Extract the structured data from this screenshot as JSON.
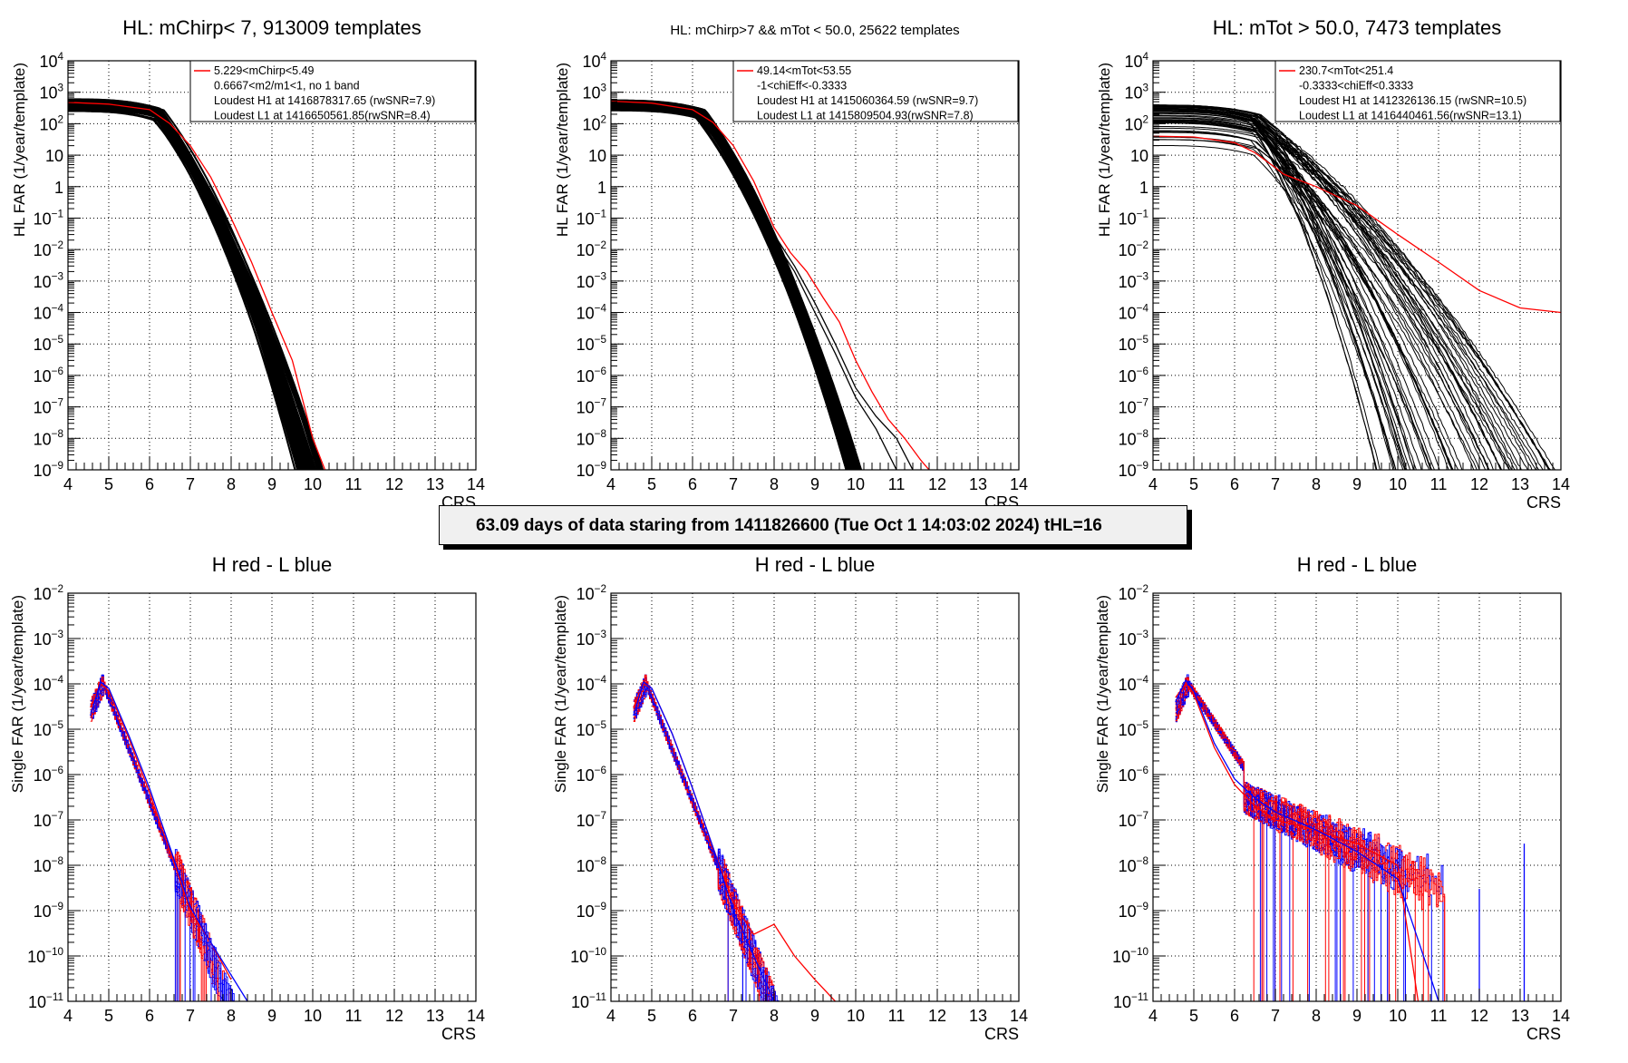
{
  "banner": {
    "text": "63.09 days of data staring from 1411826600 (Tue Oct  1 14:03:02 2024) tHL=16"
  },
  "colors": {
    "black": "#000000",
    "red": "#ff0000",
    "blue": "#0000ff",
    "grid": "#000000",
    "banner_bg": "#f0f0f0"
  },
  "chart_data": [
    {
      "id": "top-left",
      "type": "line",
      "title": "HL: mChirp< 7, 913009 templates",
      "xlabel": "CRS",
      "ylabel": "HL FAR (1/year/template)",
      "xlim": [
        4,
        14
      ],
      "ylim": [
        1e-09,
        10000.0
      ],
      "yscale": "log",
      "grid": true,
      "xticks": [
        "4",
        "5",
        "6",
        "7",
        "8",
        "9",
        "10",
        "11",
        "12",
        "13",
        "14"
      ],
      "yticks": [
        "10^4",
        "10^3",
        "10^2",
        "10",
        "1",
        "10^-1",
        "10^-2",
        "10^-3",
        "10^-4",
        "10^-5",
        "10^-6",
        "10^-7",
        "10^-8",
        "10^-9"
      ],
      "legend": {
        "position": "top-right",
        "entries": [
          "5.229<mChirp<5.49",
          "0.6667<m2/m1<1, no 1 band",
          "Loudest H1 at 1416878317.65 (rwSNR=7.9)",
          "Loudest L1 at 1416650561.85(rwSNR=8.4)"
        ]
      },
      "bundle": {
        "color": "black",
        "count": 60,
        "plateau_range": [
          250,
          600
        ],
        "knee": 6.2,
        "end_range": [
          9.6,
          10.3
        ]
      },
      "series": [
        {
          "name": "5.229<mChirp<5.49",
          "color": "red",
          "x": [
            4,
            5,
            6,
            6.5,
            7,
            7.5,
            8,
            8.5,
            9,
            9.5,
            10,
            10.3
          ],
          "y": [
            480,
            420,
            280,
            100,
            20,
            2,
            0.1,
            0.004,
            0.0001,
            3e-06,
            1e-08,
            1e-09
          ]
        }
      ]
    },
    {
      "id": "top-middle",
      "type": "line",
      "title": "HL: mChirp>7 && mTot < 50.0, 25622 templates",
      "xlabel": "CRS",
      "ylabel": "HL FAR (1/year/template)",
      "xlim": [
        4,
        14
      ],
      "ylim": [
        1e-09,
        10000.0
      ],
      "yscale": "log",
      "grid": true,
      "xticks": [
        "4",
        "5",
        "6",
        "7",
        "8",
        "9",
        "10",
        "11",
        "12",
        "13",
        "14"
      ],
      "yticks": [
        "10^4",
        "10^3",
        "10^2",
        "10",
        "1",
        "10^-1",
        "10^-2",
        "10^-3",
        "10^-4",
        "10^-5",
        "10^-6",
        "10^-7",
        "10^-8",
        "10^-9"
      ],
      "legend": {
        "position": "top-right",
        "entries": [
          "49.14<mTot<53.55",
          "-1<chiEff<-0.3333",
          "Loudest H1 at 1415060364.59 (rwSNR=9.7)",
          "Loudest L1 at 1415809504.93(rwSNR=7.8)"
        ]
      },
      "bundle": {
        "color": "black",
        "count": 40,
        "plateau_range": [
          250,
          550
        ],
        "knee": 6.2,
        "end_range": [
          9.8,
          10.2
        ]
      },
      "series": [
        {
          "name": "49.14<mTot<53.55",
          "color": "red",
          "x": [
            4,
            5,
            6,
            6.5,
            7,
            7.5,
            8,
            8.4,
            8.8,
            9.2,
            9.6,
            10,
            10.4,
            10.8,
            11.2,
            11.6,
            11.8
          ],
          "y": [
            520,
            450,
            280,
            110,
            20,
            1.5,
            0.05,
            0.008,
            0.002,
            0.0003,
            5e-05,
            3e-06,
            3e-07,
            4e-08,
            1e-08,
            2e-09,
            1e-09
          ]
        },
        {
          "name": "outlier-1",
          "color": "black",
          "x": [
            8,
            8.5,
            9,
            9.5,
            10,
            10.5,
            11
          ],
          "y": [
            0.02,
            0.002,
            0.0001,
            5e-06,
            2e-07,
            2e-08,
            1e-09
          ]
        },
        {
          "name": "outlier-2",
          "color": "black",
          "x": [
            8,
            8.5,
            9,
            9.5,
            10,
            10.5,
            11,
            11.4
          ],
          "y": [
            0.03,
            0.003,
            0.0002,
            1e-05,
            4e-07,
            5e-08,
            1e-08,
            1e-09
          ]
        }
      ]
    },
    {
      "id": "top-right",
      "type": "line",
      "title": "HL: mTot > 50.0, 7473 templates",
      "xlabel": "CRS",
      "ylabel": "HL FAR (1/year/template)",
      "xlim": [
        4,
        14
      ],
      "ylim": [
        1e-09,
        10000.0
      ],
      "yscale": "log",
      "grid": true,
      "xticks": [
        "4",
        "5",
        "6",
        "7",
        "8",
        "9",
        "10",
        "11",
        "12",
        "13",
        "14"
      ],
      "yticks": [
        "10^4",
        "10^3",
        "10^2",
        "10",
        "1",
        "10^-1",
        "10^-2",
        "10^-3",
        "10^-4",
        "10^-5",
        "10^-6",
        "10^-7",
        "10^-8",
        "10^-9"
      ],
      "legend": {
        "position": "top-right",
        "entries": [
          "230.7<mTot<251.4",
          "-0.3333<chiEff<0.3333",
          "Loudest H1 at 1412326136.15 (rwSNR=10.5)",
          "Loudest L1 at 1416440461.56(rwSNR=13.1)"
        ]
      },
      "bundle": {
        "color": "black",
        "count": 55,
        "plateau_range": [
          18,
          400
        ],
        "knee": 6.5,
        "end_range": [
          9.5,
          14
        ]
      },
      "series": [
        {
          "name": "230.7<mTot<251.4",
          "color": "red",
          "x": [
            4,
            5,
            6,
            6.5,
            7,
            7.2,
            8,
            9,
            10,
            11,
            12,
            13,
            14
          ],
          "y": [
            40,
            38,
            25,
            12,
            4,
            2.5,
            1.0,
            0.25,
            0.03,
            0.004,
            0.0005,
            0.00014,
            0.0001
          ]
        }
      ]
    },
    {
      "id": "bottom-left",
      "type": "line",
      "title": "H red - L blue",
      "xlabel": "CRS",
      "ylabel": "Single FAR (1/year/template)",
      "xlim": [
        4,
        14
      ],
      "ylim": [
        1e-11,
        0.01
      ],
      "yscale": "log",
      "grid": true,
      "xticks": [
        "4",
        "5",
        "6",
        "7",
        "8",
        "9",
        "10",
        "11",
        "12",
        "13",
        "14"
      ],
      "yticks": [
        "10^-2",
        "10^-3",
        "10^-4",
        "10^-5",
        "10^-6",
        "10^-7",
        "10^-8",
        "10^-9",
        "10^-10",
        "10^-11"
      ],
      "bundle": {
        "count": 30,
        "tail_end": [
          6.7,
          8.4
        ],
        "spread": 0.2
      },
      "series": [
        {
          "name": "H",
          "color": "red",
          "x": [
            4.55,
            4.8,
            5.0,
            5.5,
            6.0,
            6.5,
            7.0,
            7.5,
            8.0
          ],
          "y": [
            3e-05,
            0.0001,
            7e-05,
            6e-06,
            4e-07,
            2e-08,
            1e-09,
            2e-10,
            3e-11
          ]
        },
        {
          "name": "L",
          "color": "blue",
          "x": [
            4.55,
            4.8,
            5.0,
            5.5,
            6.0,
            6.5,
            7.0,
            7.5,
            8.4
          ],
          "y": [
            2e-05,
            0.00011,
            8e-05,
            7e-06,
            5e-07,
            2.5e-08,
            1.2e-09,
            2e-10,
            1e-11
          ]
        }
      ]
    },
    {
      "id": "bottom-middle",
      "type": "line",
      "title": "H red - L blue",
      "xlabel": "CRS",
      "ylabel": "Single FAR (1/year/template)",
      "xlim": [
        4,
        14
      ],
      "ylim": [
        1e-11,
        0.01
      ],
      "yscale": "log",
      "grid": true,
      "xticks": [
        "4",
        "5",
        "6",
        "7",
        "8",
        "9",
        "10",
        "11",
        "12",
        "13",
        "14"
      ],
      "yticks": [
        "10^-2",
        "10^-3",
        "10^-4",
        "10^-5",
        "10^-6",
        "10^-7",
        "10^-8",
        "10^-9",
        "10^-10",
        "10^-11"
      ],
      "bundle": {
        "count": 30,
        "tail_end": [
          6.9,
          9.5
        ],
        "spread": 0.2
      },
      "series": [
        {
          "name": "H",
          "color": "red",
          "x": [
            4.55,
            4.8,
            5.0,
            5.5,
            6.0,
            6.5,
            7.0,
            7.5,
            8.0,
            8.5,
            9.0,
            9.5
          ],
          "y": [
            3e-05,
            0.0001,
            8e-05,
            8e-06,
            5e-07,
            2.5e-08,
            1.5e-09,
            3e-10,
            5e-10,
            1e-10,
            3e-11,
            1e-11
          ]
        },
        {
          "name": "L",
          "color": "blue",
          "x": [
            4.55,
            4.8,
            5.0,
            5.5,
            6.0,
            6.5,
            7.0,
            7.5,
            8.0
          ],
          "y": [
            2e-05,
            0.00011,
            8e-05,
            8e-06,
            5e-07,
            2.5e-08,
            1e-09,
            1e-10,
            1e-11
          ]
        }
      ]
    },
    {
      "id": "bottom-right",
      "type": "line",
      "title": "H red - L blue",
      "xlabel": "CRS",
      "ylabel": "Single FAR (1/year/template)",
      "xlim": [
        4,
        14
      ],
      "ylim": [
        1e-11,
        0.01
      ],
      "yscale": "log",
      "grid": true,
      "xticks": [
        "4",
        "5",
        "6",
        "7",
        "8",
        "9",
        "10",
        "11",
        "12",
        "13",
        "14"
      ],
      "yticks": [
        "10^-2",
        "10^-3",
        "10^-4",
        "10^-5",
        "10^-6",
        "10^-7",
        "10^-8",
        "10^-9",
        "10^-10",
        "10^-11"
      ],
      "bundle": {
        "count": 45,
        "tail_end": [
          6.5,
          11.3
        ],
        "spread": 0.6
      },
      "series": [
        {
          "name": "H",
          "color": "red",
          "x": [
            4.55,
            4.8,
            5.0,
            5.5,
            6.0,
            6.5,
            7.0,
            8.0,
            9.0,
            10.0,
            10.5
          ],
          "y": [
            5e-05,
            0.0001,
            6e-05,
            4e-06,
            6e-07,
            2e-07,
            1e-07,
            6e-08,
            3e-08,
            1e-08,
            1e-11
          ]
        },
        {
          "name": "L",
          "color": "blue",
          "x": [
            4.55,
            4.8,
            5.0,
            5.5,
            6.0,
            6.5,
            7.0,
            8.0,
            9.0,
            10.0,
            11.0
          ],
          "y": [
            4e-05,
            0.00012,
            7e-05,
            5e-06,
            8e-07,
            3e-07,
            1.5e-07,
            6e-08,
            2e-08,
            5e-09,
            1e-11
          ]
        },
        {
          "name": "L-spike-12",
          "color": "blue",
          "x": [
            12.0,
            12.0
          ],
          "y": [
            1e-11,
            3e-09
          ]
        },
        {
          "name": "L-spike-13",
          "color": "blue",
          "x": [
            13.1,
            13.1
          ],
          "y": [
            1e-11,
            3e-08
          ]
        }
      ]
    }
  ]
}
